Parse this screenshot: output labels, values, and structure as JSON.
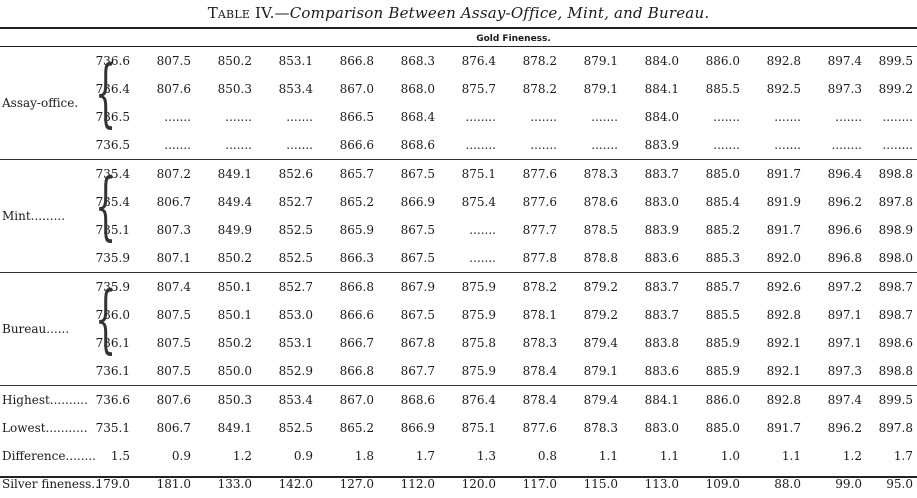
{
  "title": {
    "table_label": "Table IV.",
    "subtitle": "Comparison Between Assay-Office, Mint, and Bureau."
  },
  "header": "Gold Fineness.",
  "groups": [
    {
      "label": "Assay-office.",
      "rows": [
        [
          "736.6",
          "807.5",
          "850.2",
          "853.1",
          "866.8",
          "868.3",
          "876.4",
          "878.2",
          "879.1",
          "884.0",
          "886.0",
          "892.8",
          "897.4",
          "899.5"
        ],
        [
          "736.4",
          "807.6",
          "850.3",
          "853.4",
          "867.0",
          "868.0",
          "875.7",
          "878.2",
          "879.1",
          "884.1",
          "885.5",
          "892.5",
          "897.3",
          "899.2"
        ],
        [
          "736.5",
          ".......",
          ".......",
          ".......",
          "866.5",
          "868.4",
          "........",
          ".......",
          ".......",
          "884.0",
          ".......",
          ".......",
          ".......",
          "........"
        ],
        [
          "736.5",
          ".......",
          ".......",
          ".......",
          "866.6",
          "868.6",
          "........",
          ".......",
          ".......",
          "883.9",
          ".......",
          ".......",
          "........",
          "........"
        ]
      ]
    },
    {
      "label": "Mint.........",
      "rows": [
        [
          "735.4",
          "807.2",
          "849.1",
          "852.6",
          "865.7",
          "867.5",
          "875.1",
          "877.6",
          "878.3",
          "883.7",
          "885.0",
          "891.7",
          "896.4",
          "898.8"
        ],
        [
          "735.4",
          "806.7",
          "849.4",
          "852.7",
          "865.2",
          "866.9",
          "875.4",
          "877.6",
          "878.6",
          "883.0",
          "885.4",
          "891.9",
          "896.2",
          "897.8"
        ],
        [
          "735.1",
          "807.3",
          "849.9",
          "852.5",
          "865.9",
          "867.5",
          ".......",
          "877.7",
          "878.5",
          "883.9",
          "885.2",
          "891.7",
          "896.6",
          "898.9"
        ],
        [
          "735.9",
          "807.1",
          "850.2",
          "852.5",
          "866.3",
          "867.5",
          ".......",
          "877.8",
          "878.8",
          "883.6",
          "885.3",
          "892.0",
          "896.8",
          "898.0"
        ]
      ]
    },
    {
      "label": "Bureau......",
      "rows": [
        [
          "735.9",
          "807.4",
          "850.1",
          "852.7",
          "866.8",
          "867.9",
          "875.9",
          "878.2",
          "879.2",
          "883.7",
          "885.7",
          "892.6",
          "897.2",
          "898.7"
        ],
        [
          "736.0",
          "807.5",
          "850.1",
          "853.0",
          "866.6",
          "867.5",
          "875.9",
          "878.1",
          "879.2",
          "883.7",
          "885.5",
          "892.8",
          "897.1",
          "898.7"
        ],
        [
          "736.1",
          "807.5",
          "850.2",
          "853.1",
          "866.7",
          "867.8",
          "875.8",
          "878.3",
          "879.4",
          "883.8",
          "885.9",
          "892.1",
          "897.1",
          "898.6"
        ],
        [
          "736.1",
          "807.5",
          "850.0",
          "852.9",
          "866.8",
          "867.7",
          "875.9",
          "878.4",
          "879.1",
          "883.6",
          "885.9",
          "892.1",
          "897.3",
          "898.8"
        ]
      ]
    }
  ],
  "summary": [
    {
      "label": "Highest..........",
      "first": "736.6",
      "values": [
        "807.6",
        "850.3",
        "853.4",
        "867.0",
        "868.6",
        "876.4",
        "878.4",
        "879.4",
        "884.1",
        "886.0",
        "892.8",
        "897.4",
        "899.5"
      ]
    },
    {
      "label": "Lowest...........",
      "first": "735.1",
      "values": [
        "806.7",
        "849.1",
        "852.5",
        "865.2",
        "866.9",
        "875.1",
        "877.6",
        "878.3",
        "883.0",
        "885.0",
        "891.7",
        "896.2",
        "897.8"
      ]
    },
    {
      "label": "Difference........",
      "first": "1.5",
      "values": [
        "0.9",
        "1.2",
        "0.9",
        "1.8",
        "1.7",
        "1.3",
        "0.8",
        "1.1",
        "1.1",
        "1.0",
        "1.1",
        "1.2",
        "1.7"
      ]
    },
    {
      "label": "Silver fineness..",
      "first": "179.0",
      "values": [
        "181.0",
        "133.0",
        "142.0",
        "127.0",
        "112.0",
        "120.0",
        "117.0",
        "115.0",
        "113.0",
        "109.0",
        "88.0",
        "99.0",
        "95.0"
      ]
    }
  ]
}
